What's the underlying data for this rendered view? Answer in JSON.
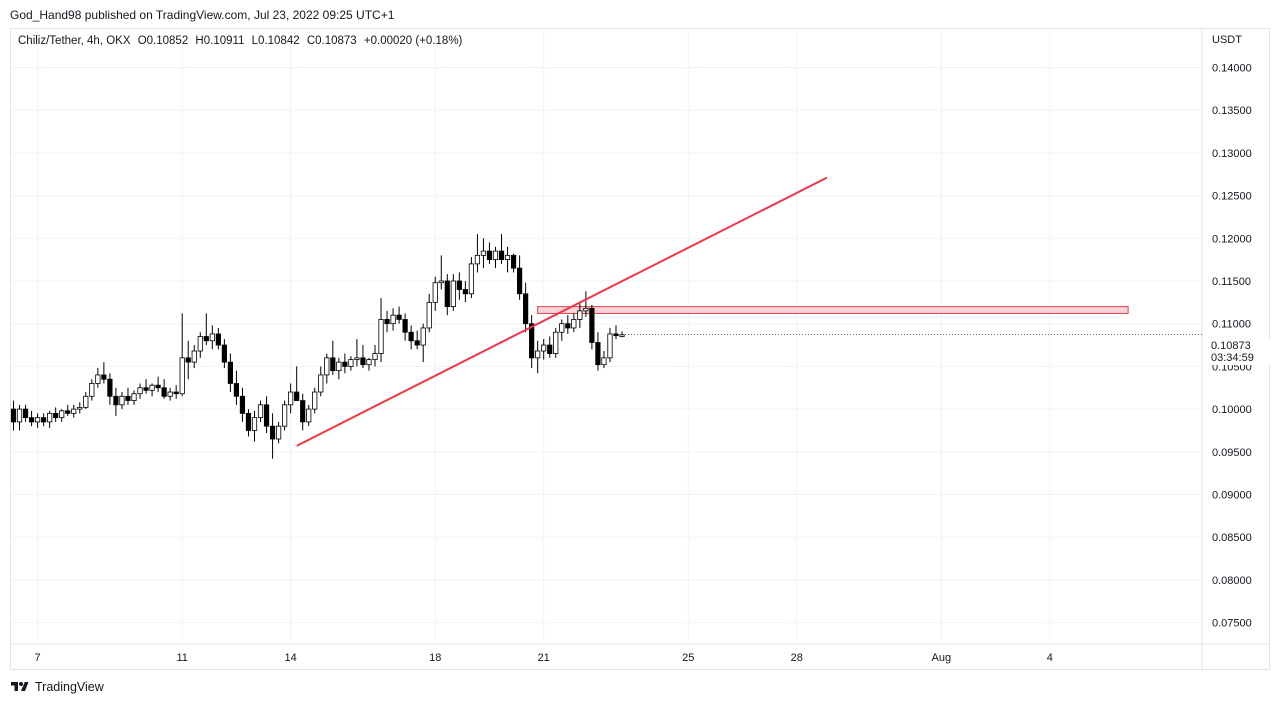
{
  "header": {
    "publisher_line": "God_Hand98 published on TradingView.com, Jul 23, 2022 09:25 UTC+1"
  },
  "legend": {
    "symbol": "Chiliz/Tether, 4h, OKX",
    "open": "O0.10852",
    "high": "H0.10911",
    "low": "L0.10842",
    "close": "C0.10873",
    "change": "+0.00020 (+0.18%)"
  },
  "price_axis": {
    "currency": "USDT",
    "last_price": "0.10873",
    "countdown": "03:34:59"
  },
  "footer": {
    "brand": "TradingView"
  },
  "colors": {
    "up": "#ffffff",
    "down": "#000000",
    "wick": "#000000",
    "trendline": "#f23645",
    "zone_fill": "#f8c9cd",
    "zone_border": "#e0404e",
    "grid": "#f0f3fa"
  },
  "chart_data": {
    "type": "candlestick",
    "ylim": [
      0.0725,
      0.1445
    ],
    "y_ticks": [
      "0.14000",
      "0.13500",
      "0.13000",
      "0.12500",
      "0.12000",
      "0.11500",
      "0.11000",
      "0.10500",
      "0.10000",
      "0.09500",
      "0.09000",
      "0.08500",
      "0.08000",
      "0.07500"
    ],
    "x_ticks": [
      {
        "label": "7",
        "t": 4
      },
      {
        "label": "11",
        "t": 28
      },
      {
        "label": "14",
        "t": 46
      },
      {
        "label": "18",
        "t": 70
      },
      {
        "label": "21",
        "t": 88
      },
      {
        "label": "25",
        "t": 112
      },
      {
        "label": "28",
        "t": 130
      },
      {
        "label": "Aug",
        "t": 154
      },
      {
        "label": "4",
        "t": 172
      }
    ],
    "candles": [
      [
        0.1,
        0.101,
        0.0975,
        0.0985
      ],
      [
        0.0985,
        0.1005,
        0.0975,
        0.1
      ],
      [
        0.1,
        0.1005,
        0.0985,
        0.099
      ],
      [
        0.099,
        0.0998,
        0.098,
        0.0985
      ],
      [
        0.0985,
        0.0995,
        0.0978,
        0.099
      ],
      [
        0.099,
        0.0995,
        0.098,
        0.0985
      ],
      [
        0.0985,
        0.0998,
        0.0978,
        0.0995
      ],
      [
        0.0995,
        0.1002,
        0.0985,
        0.099
      ],
      [
        0.099,
        0.1,
        0.0985,
        0.0998
      ],
      [
        0.0998,
        0.1005,
        0.0992,
        0.0995
      ],
      [
        0.0995,
        0.1005,
        0.099,
        0.1
      ],
      [
        0.1,
        0.1008,
        0.0995,
        0.1002
      ],
      [
        0.1002,
        0.102,
        0.1,
        0.1015
      ],
      [
        0.1015,
        0.1035,
        0.101,
        0.103
      ],
      [
        0.103,
        0.1048,
        0.1025,
        0.104
      ],
      [
        0.104,
        0.1055,
        0.103,
        0.1035
      ],
      [
        0.1035,
        0.1042,
        0.1005,
        0.1015
      ],
      [
        0.1015,
        0.1025,
        0.0992,
        0.1005
      ],
      [
        0.1005,
        0.102,
        0.1,
        0.1015
      ],
      [
        0.1015,
        0.1025,
        0.1005,
        0.101
      ],
      [
        0.101,
        0.1022,
        0.1005,
        0.1018
      ],
      [
        0.1018,
        0.103,
        0.1012,
        0.1025
      ],
      [
        0.1025,
        0.1035,
        0.1018,
        0.1022
      ],
      [
        0.1022,
        0.103,
        0.1015,
        0.1028
      ],
      [
        0.1028,
        0.1038,
        0.102,
        0.1025
      ],
      [
        0.1025,
        0.1035,
        0.1012,
        0.1015
      ],
      [
        0.1015,
        0.1025,
        0.101,
        0.102
      ],
      [
        0.102,
        0.1028,
        0.1012,
        0.1018
      ],
      [
        0.1018,
        0.1112,
        0.1015,
        0.106
      ],
      [
        0.106,
        0.108,
        0.1035,
        0.1055
      ],
      [
        0.1055,
        0.1075,
        0.1048,
        0.1068
      ],
      [
        0.1068,
        0.109,
        0.106,
        0.1085
      ],
      [
        0.1085,
        0.1112,
        0.1075,
        0.108
      ],
      [
        0.108,
        0.1098,
        0.107,
        0.1088
      ],
      [
        0.1088,
        0.1095,
        0.107,
        0.1075
      ],
      [
        0.1075,
        0.1082,
        0.1048,
        0.1055
      ],
      [
        0.1055,
        0.1065,
        0.102,
        0.103
      ],
      [
        0.103,
        0.1045,
        0.1005,
        0.1015
      ],
      [
        0.1015,
        0.1025,
        0.0985,
        0.0995
      ],
      [
        0.0995,
        0.1,
        0.0968,
        0.0975
      ],
      [
        0.0975,
        0.0998,
        0.0962,
        0.099
      ],
      [
        0.099,
        0.101,
        0.0985,
        0.1005
      ],
      [
        0.1005,
        0.1015,
        0.0972,
        0.098
      ],
      [
        0.098,
        0.0995,
        0.0942,
        0.0965
      ],
      [
        0.0965,
        0.0985,
        0.096,
        0.098
      ],
      [
        0.098,
        0.101,
        0.0975,
        0.1005
      ],
      [
        0.1005,
        0.103,
        0.0995,
        0.102
      ],
      [
        0.102,
        0.105,
        0.101,
        0.101
      ],
      [
        0.101,
        0.1018,
        0.0975,
        0.0985
      ],
      [
        0.0985,
        0.1005,
        0.098,
        0.1
      ],
      [
        0.1,
        0.1025,
        0.0995,
        0.102
      ],
      [
        0.102,
        0.105,
        0.1015,
        0.104
      ],
      [
        0.104,
        0.1065,
        0.103,
        0.106
      ],
      [
        0.106,
        0.108,
        0.104,
        0.1045
      ],
      [
        0.1045,
        0.106,
        0.1035,
        0.1055
      ],
      [
        0.1055,
        0.1065,
        0.1042,
        0.105
      ],
      [
        0.105,
        0.1062,
        0.1045,
        0.1058
      ],
      [
        0.1058,
        0.1082,
        0.105,
        0.106
      ],
      [
        0.106,
        0.1075,
        0.1048,
        0.1052
      ],
      [
        0.1052,
        0.106,
        0.1045,
        0.1058
      ],
      [
        0.1058,
        0.1075,
        0.105,
        0.1065
      ],
      [
        0.1065,
        0.113,
        0.1055,
        0.1105
      ],
      [
        0.1105,
        0.1115,
        0.109,
        0.11
      ],
      [
        0.11,
        0.1118,
        0.1092,
        0.111
      ],
      [
        0.111,
        0.112,
        0.11,
        0.1105
      ],
      [
        0.1105,
        0.1112,
        0.108,
        0.109
      ],
      [
        0.109,
        0.1098,
        0.107,
        0.108
      ],
      [
        0.108,
        0.1092,
        0.107,
        0.1075
      ],
      [
        0.1075,
        0.11,
        0.1055,
        0.1095
      ],
      [
        0.1095,
        0.1135,
        0.109,
        0.1125
      ],
      [
        0.1125,
        0.1155,
        0.1115,
        0.1148
      ],
      [
        0.1148,
        0.118,
        0.114,
        0.115
      ],
      [
        0.115,
        0.1158,
        0.111,
        0.112
      ],
      [
        0.112,
        0.1158,
        0.1115,
        0.115
      ],
      [
        0.115,
        0.116,
        0.1128,
        0.114
      ],
      [
        0.114,
        0.115,
        0.1125,
        0.1135
      ],
      [
        0.1135,
        0.1178,
        0.113,
        0.117
      ],
      [
        0.117,
        0.1205,
        0.116,
        0.118
      ],
      [
        0.118,
        0.12,
        0.1165,
        0.1185
      ],
      [
        0.1185,
        0.1195,
        0.117,
        0.1175
      ],
      [
        0.1175,
        0.119,
        0.1165,
        0.1185
      ],
      [
        0.1185,
        0.1205,
        0.117,
        0.1175
      ],
      [
        0.1175,
        0.119,
        0.116,
        0.118
      ],
      [
        0.118,
        0.1182,
        0.116,
        0.1165
      ],
      [
        0.1165,
        0.118,
        0.1128,
        0.1135
      ],
      [
        0.1135,
        0.1148,
        0.109,
        0.11
      ],
      [
        0.11,
        0.111,
        0.1048,
        0.106
      ],
      [
        0.106,
        0.108,
        0.1042,
        0.1068
      ],
      [
        0.1068,
        0.1082,
        0.1058,
        0.1075
      ],
      [
        0.1075,
        0.1085,
        0.106,
        0.1065
      ],
      [
        0.1065,
        0.1095,
        0.106,
        0.109
      ],
      [
        0.109,
        0.1105,
        0.108,
        0.11
      ],
      [
        0.11,
        0.111,
        0.1088,
        0.1095
      ],
      [
        0.1095,
        0.1112,
        0.109,
        0.1105
      ],
      [
        0.1105,
        0.1125,
        0.1095,
        0.1115
      ],
      [
        0.1115,
        0.1138,
        0.1108,
        0.1118
      ],
      [
        0.1118,
        0.1122,
        0.107,
        0.1078
      ],
      [
        0.1078,
        0.109,
        0.1045,
        0.1052
      ],
      [
        0.1052,
        0.1068,
        0.1048,
        0.106
      ],
      [
        0.106,
        0.1095,
        0.1055,
        0.1088
      ],
      [
        0.1088,
        0.1098,
        0.1082,
        0.1086
      ],
      [
        0.1085,
        0.1091,
        0.1084,
        0.1087
      ]
    ],
    "trendline": {
      "t1": 47,
      "p1": 0.0957,
      "t2": 135,
      "p2": 0.1271
    },
    "zone": {
      "t1": 87,
      "t2": 185,
      "p_top": 0.112,
      "p_bottom": 0.1112
    },
    "last_price": 0.10873
  }
}
